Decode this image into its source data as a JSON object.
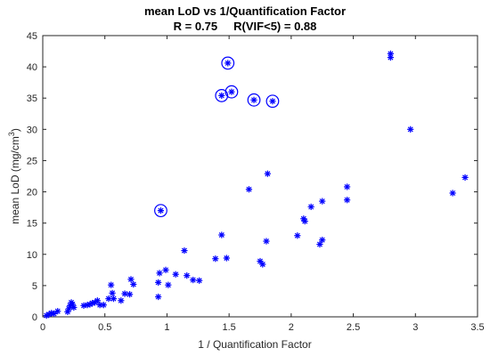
{
  "chart_data": {
    "type": "scatter",
    "title": "mean LoD vs 1/Quantification Factor",
    "subtitle": "R = 0.75     R(VIF<5) = 0.88",
    "xlabel": "1 / Quantification Factor",
    "ylabel": "mean LoD (mg/cm",
    "ylabel_sup": "3",
    "ylabel_close": ")",
    "xlim": [
      0,
      3.5
    ],
    "ylim": [
      0,
      45
    ],
    "xticks": [
      0,
      0.5,
      1,
      1.5,
      2,
      2.5,
      3,
      3.5
    ],
    "xtick_labels": [
      "0",
      "0.5",
      "1",
      "1.5",
      "2",
      "2.5",
      "3",
      "3.5"
    ],
    "yticks": [
      0,
      5,
      10,
      15,
      20,
      25,
      30,
      35,
      40,
      45
    ],
    "ytick_labels": [
      "0",
      "5",
      "10",
      "15",
      "20",
      "25",
      "30",
      "35",
      "40",
      "45"
    ],
    "marker_color": "#0000ff",
    "grid": false,
    "series": [
      {
        "marker": "asterisk",
        "points": [
          [
            0.03,
            0.2
          ],
          [
            0.05,
            0.4
          ],
          [
            0.07,
            0.6
          ],
          [
            0.09,
            0.5
          ],
          [
            0.12,
            0.9
          ],
          [
            0.2,
            0.8
          ],
          [
            0.21,
            1.3
          ],
          [
            0.22,
            1.8
          ],
          [
            0.23,
            2.3
          ],
          [
            0.24,
            2.0
          ],
          [
            0.25,
            1.5
          ],
          [
            0.33,
            1.8
          ],
          [
            0.36,
            1.9
          ],
          [
            0.38,
            2.0
          ],
          [
            0.4,
            2.2
          ],
          [
            0.42,
            2.3
          ],
          [
            0.44,
            2.6
          ],
          [
            0.46,
            1.9
          ],
          [
            0.49,
            1.9
          ],
          [
            0.53,
            2.9
          ],
          [
            0.55,
            5.1
          ],
          [
            0.56,
            3.8
          ],
          [
            0.57,
            2.9
          ],
          [
            0.63,
            2.6
          ],
          [
            0.66,
            3.7
          ],
          [
            0.7,
            3.6
          ],
          [
            0.71,
            6.0
          ],
          [
            0.73,
            5.2
          ],
          [
            0.93,
            3.2
          ],
          [
            0.93,
            5.5
          ],
          [
            0.94,
            7.0
          ],
          [
            0.99,
            7.5
          ],
          [
            1.01,
            5.1
          ],
          [
            1.07,
            6.8
          ],
          [
            1.14,
            10.6
          ],
          [
            1.16,
            6.6
          ],
          [
            1.21,
            5.9
          ],
          [
            1.26,
            5.8
          ],
          [
            1.39,
            9.3
          ],
          [
            1.44,
            13.1
          ],
          [
            1.48,
            9.4
          ],
          [
            1.66,
            20.4
          ],
          [
            1.75,
            8.9
          ],
          [
            1.77,
            8.4
          ],
          [
            1.8,
            12.1
          ],
          [
            1.81,
            22.9
          ],
          [
            2.05,
            13.0
          ],
          [
            2.1,
            15.7
          ],
          [
            2.11,
            15.3
          ],
          [
            2.16,
            17.6
          ],
          [
            2.23,
            11.6
          ],
          [
            2.25,
            12.3
          ],
          [
            2.25,
            18.5
          ],
          [
            2.45,
            18.7
          ],
          [
            2.45,
            20.8
          ],
          [
            2.8,
            41.5
          ],
          [
            2.8,
            42.1
          ],
          [
            2.96,
            30.0
          ],
          [
            3.3,
            19.8
          ],
          [
            3.4,
            22.3
          ]
        ]
      },
      {
        "marker": "circled-asterisk",
        "points": [
          [
            0.95,
            17.0
          ],
          [
            1.44,
            35.4
          ],
          [
            1.49,
            40.6
          ],
          [
            1.52,
            36.0
          ],
          [
            1.7,
            34.7
          ],
          [
            1.85,
            34.5
          ]
        ]
      }
    ]
  }
}
